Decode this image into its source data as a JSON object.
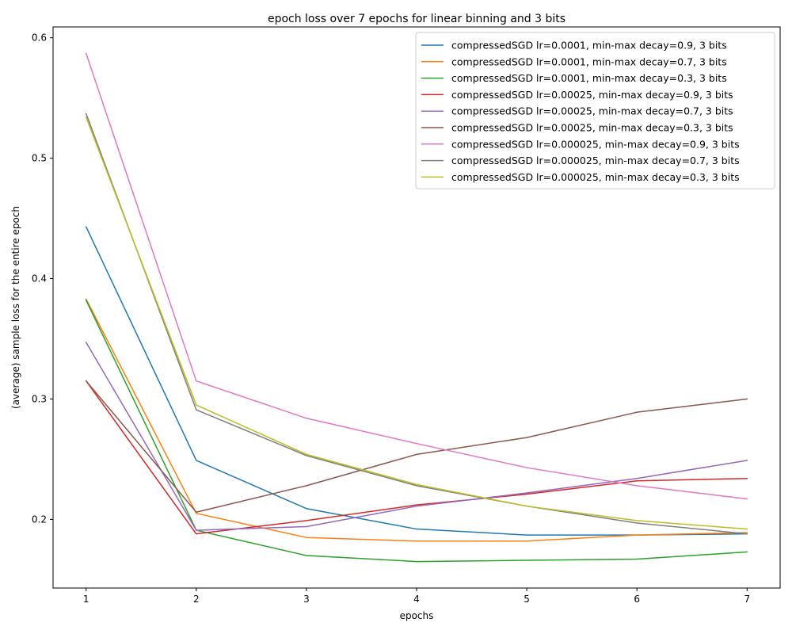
{
  "chart_data": {
    "type": "line",
    "title": "epoch loss over 7 epochs for linear binning and 3 bits",
    "xlabel": "epochs",
    "ylabel": "(average) sample loss for the entire epoch",
    "x": [
      1,
      2,
      3,
      4,
      5,
      6,
      7
    ],
    "xlim": [
      0.7,
      7.3
    ],
    "ylim": [
      0.143,
      0.609
    ],
    "xticks": [
      1,
      2,
      3,
      4,
      5,
      6,
      7
    ],
    "yticks": [
      0.2,
      0.3,
      0.4,
      0.5,
      0.6
    ],
    "ytick_labels": [
      "0.2",
      "0.3",
      "0.4",
      "0.5",
      "0.6"
    ],
    "grid": false,
    "legend_position": "top-right",
    "series": [
      {
        "name": "compressedSGD lr=0.0001, min-max decay=0.9, 3 bits",
        "color": "#1f77b4",
        "values": [
          0.443,
          0.249,
          0.209,
          0.192,
          0.187,
          0.187,
          0.188
        ]
      },
      {
        "name": "compressedSGD lr=0.0001, min-max decay=0.7, 3 bits",
        "color": "#ff7f0e",
        "values": [
          0.383,
          0.205,
          0.185,
          0.182,
          0.182,
          0.187,
          0.189
        ]
      },
      {
        "name": "compressedSGD lr=0.0001, min-max decay=0.3, 3 bits",
        "color": "#2ca02c",
        "values": [
          0.382,
          0.191,
          0.17,
          0.165,
          0.166,
          0.167,
          0.173
        ]
      },
      {
        "name": "compressedSGD lr=0.00025, min-max decay=0.9, 3 bits",
        "color": "#d62728",
        "values": [
          0.315,
          0.188,
          0.199,
          0.212,
          0.221,
          0.232,
          0.234
        ]
      },
      {
        "name": "compressedSGD lr=0.00025, min-max decay=0.7, 3 bits",
        "color": "#9467bd",
        "values": [
          0.347,
          0.191,
          0.194,
          0.211,
          0.222,
          0.234,
          0.249
        ]
      },
      {
        "name": "compressedSGD lr=0.00025, min-max decay=0.3, 3 bits",
        "color": "#8c564b",
        "values": [
          0.315,
          0.206,
          0.228,
          0.254,
          0.268,
          0.289,
          0.3
        ]
      },
      {
        "name": "compressedSGD lr=0.000025, min-max decay=0.9, 3 bits",
        "color": "#e377c2",
        "values": [
          0.587,
          0.315,
          0.284,
          0.263,
          0.243,
          0.228,
          0.217
        ]
      },
      {
        "name": "compressedSGD lr=0.000025, min-max decay=0.7, 3 bits",
        "color": "#7f7f7f",
        "values": [
          0.537,
          0.291,
          0.253,
          0.228,
          0.211,
          0.197,
          0.188
        ]
      },
      {
        "name": "compressedSGD lr=0.000025, min-max decay=0.3, 3 bits",
        "color": "#bcbd22",
        "values": [
          0.534,
          0.295,
          0.254,
          0.229,
          0.211,
          0.199,
          0.192
        ]
      }
    ]
  }
}
